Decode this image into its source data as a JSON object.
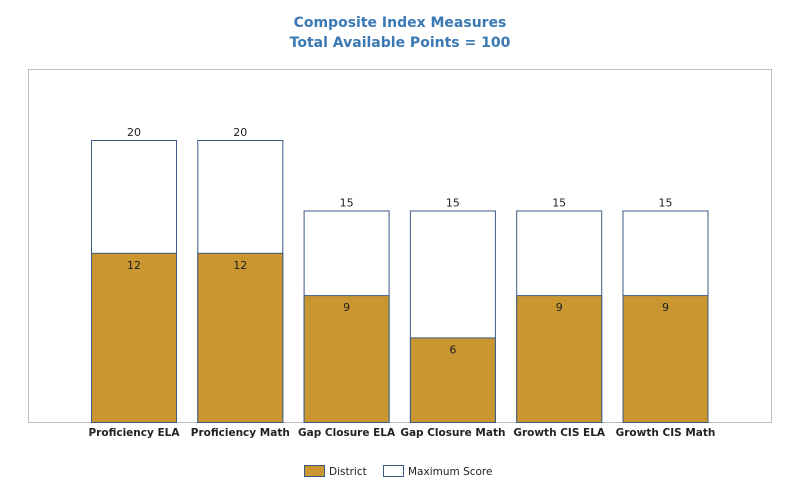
{
  "chart_data": {
    "type": "bar",
    "title": "Composite Index Measures",
    "subtitle": "Total Available Points = 100",
    "categories": [
      "Proficiency ELA",
      "Proficiency Math",
      "Gap Closure ELA",
      "Gap Closure Math",
      "Growth CIS ELA",
      "Growth CIS Math"
    ],
    "series": [
      {
        "name": "District",
        "values": [
          12,
          12,
          9,
          6,
          9,
          9
        ],
        "color": "#c9962f"
      },
      {
        "name": "Maximum Score",
        "values": [
          20,
          20,
          15,
          15,
          15,
          15
        ],
        "color": "#ffffff",
        "border": "#3b5a85"
      }
    ],
    "ylim": [
      0,
      25
    ],
    "xlabel": "",
    "ylabel": "",
    "grid": false,
    "legend": "bottom-center"
  }
}
